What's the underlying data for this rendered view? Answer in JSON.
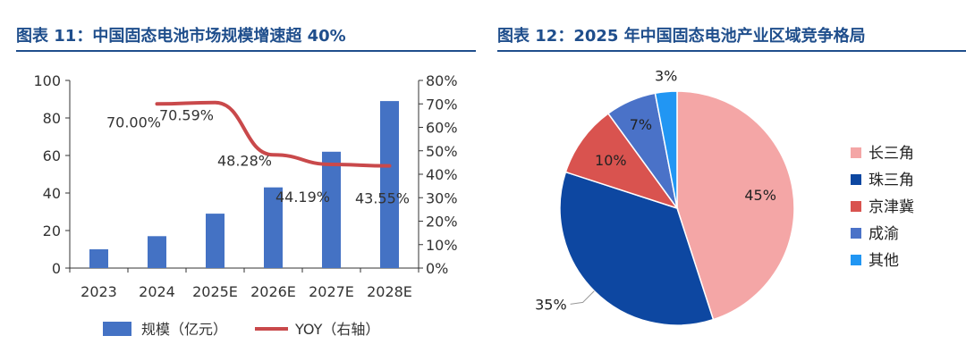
{
  "fig11": {
    "title": "图表 11：中国固态电池市场规模增速超 40%"
  },
  "fig12": {
    "title": "图表 12：2025 年中国固态电池产业区域竞争格局"
  },
  "chart_data": [
    {
      "type": "bar",
      "title": "图表 11：中国固态电池市场规模增速超 40%",
      "categories": [
        "2023",
        "2024",
        "2025E",
        "2026E",
        "2027E",
        "2028E"
      ],
      "series": [
        {
          "name": "规模（亿元）",
          "type": "bar",
          "axis": "left",
          "color": "#4472c4",
          "values": [
            10,
            17,
            29,
            43,
            62,
            89
          ]
        },
        {
          "name": "YOY（右轴）",
          "type": "line",
          "axis": "right",
          "color": "#c9494b",
          "values": [
            null,
            70.0,
            70.59,
            48.28,
            44.19,
            43.55
          ]
        }
      ],
      "data_labels": [
        "",
        "70.00%",
        "70.59%",
        "48.28%",
        "44.19%",
        "43.55%"
      ],
      "y_left": {
        "ylim": [
          0,
          100
        ],
        "ticks": [
          "100",
          "80",
          "60",
          "40",
          "20",
          "0"
        ]
      },
      "y_right": {
        "ylim": [
          0,
          80
        ],
        "ticks": [
          "80%",
          "70%",
          "60%",
          "50%",
          "40%",
          "30%",
          "20%",
          "10%",
          "0%"
        ]
      },
      "grid": false,
      "legend_position": "bottom"
    },
    {
      "type": "pie",
      "title": "图表 12：2025 年中国固态电池产业区域竞争格局",
      "slices": [
        {
          "label": "长三角",
          "value": 45,
          "text": "45%",
          "color": "#f4a6a6"
        },
        {
          "label": "珠三角",
          "value": 35,
          "text": "35%",
          "color": "#0d47a1"
        },
        {
          "label": "京津冀",
          "value": 10,
          "text": "10%",
          "color": "#d9534f"
        },
        {
          "label": "成渝",
          "value": 7,
          "text": "7%",
          "color": "#4a72c8"
        },
        {
          "label": "其他",
          "value": 3,
          "text": "3%",
          "color": "#2196f3"
        }
      ],
      "legend_position": "right"
    }
  ]
}
